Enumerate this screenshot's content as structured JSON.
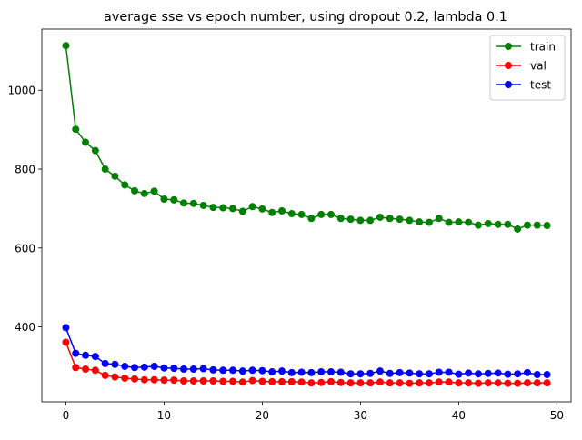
{
  "chart_data": {
    "type": "line",
    "title": "average sse vs epoch number, using dropout 0.2, lambda 0.1",
    "xlabel": "",
    "ylabel": "",
    "xlim": [
      -2.45,
      51.45
    ],
    "ylim": [
      210,
      1155
    ],
    "xticks": [
      0,
      10,
      20,
      30,
      40,
      50
    ],
    "yticks": [
      400,
      600,
      800,
      1000
    ],
    "grid": false,
    "legend_position": "top-right",
    "x": [
      0,
      1,
      2,
      3,
      4,
      5,
      6,
      7,
      8,
      9,
      10,
      11,
      12,
      13,
      14,
      15,
      16,
      17,
      18,
      19,
      20,
      21,
      22,
      23,
      24,
      25,
      26,
      27,
      28,
      29,
      30,
      31,
      32,
      33,
      34,
      35,
      36,
      37,
      38,
      39,
      40,
      41,
      42,
      43,
      44,
      45,
      46,
      47,
      48,
      49
    ],
    "series": [
      {
        "name": "train",
        "color": "#008000",
        "values": [
          1113,
          901,
          868,
          847,
          800,
          782,
          760,
          745,
          738,
          744,
          724,
          722,
          714,
          713,
          708,
          703,
          702,
          700,
          693,
          705,
          699,
          690,
          694,
          687,
          685,
          675,
          685,
          685,
          675,
          673,
          670,
          670,
          678,
          675,
          673,
          670,
          666,
          665,
          675,
          665,
          666,
          665,
          658,
          662,
          660,
          660,
          648,
          658,
          658,
          657
        ]
      },
      {
        "name": "val",
        "color": "#ff0000",
        "values": [
          361,
          297,
          293,
          290,
          277,
          273,
          270,
          268,
          266,
          266,
          265,
          265,
          263,
          263,
          263,
          263,
          262,
          262,
          260,
          264,
          262,
          261,
          261,
          261,
          260,
          258,
          259,
          261,
          259,
          258,
          258,
          258,
          260,
          258,
          258,
          257,
          258,
          258,
          260,
          260,
          258,
          258,
          257,
          258,
          258,
          257,
          257,
          258,
          258,
          258
        ]
      },
      {
        "name": "test",
        "color": "#0000ff",
        "values": [
          398,
          333,
          328,
          325,
          307,
          305,
          300,
          297,
          298,
          300,
          296,
          295,
          293,
          293,
          294,
          291,
          290,
          290,
          288,
          290,
          289,
          286,
          288,
          284,
          285,
          284,
          286,
          286,
          285,
          281,
          281,
          282,
          288,
          282,
          284,
          283,
          281,
          281,
          285,
          285,
          280,
          283,
          281,
          282,
          283,
          280,
          281,
          284,
          279,
          279
        ]
      }
    ]
  }
}
